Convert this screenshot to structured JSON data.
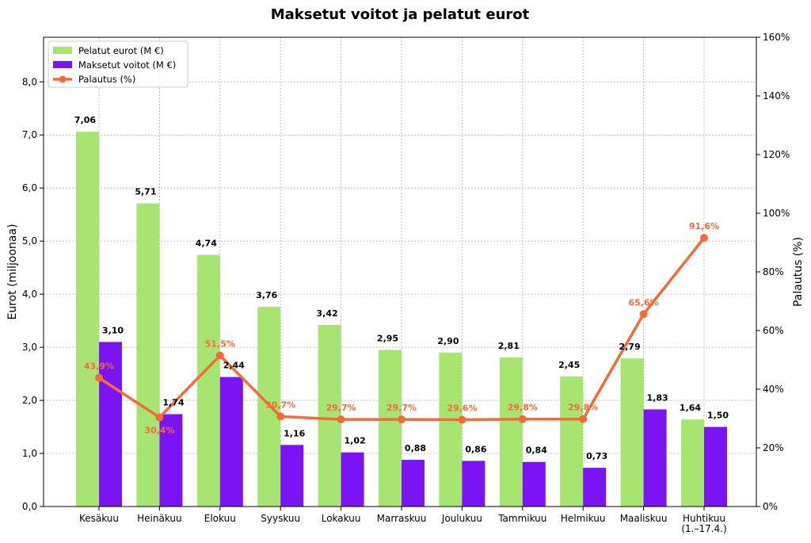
{
  "chart_data": {
    "type": "bar",
    "title": "Maksetut voitot ja pelatut eurot",
    "ylabel": "Eurot (miljoonaa)",
    "y2label": "Palautus (%)",
    "xlabel": "",
    "ylim": [
      0,
      8.84
    ],
    "y2lim": [
      0,
      160
    ],
    "yticks": [
      "0,0",
      "1,0",
      "2,0",
      "3,0",
      "4,0",
      "5,0",
      "6,0",
      "7,0",
      "8,0"
    ],
    "y2ticks": [
      "0%",
      "20%",
      "40%",
      "60%",
      "80%",
      "100%",
      "120%",
      "140%",
      "160%"
    ],
    "grid": true,
    "legend_position": "top-left",
    "categories": [
      "Kesäkuu",
      "Heinäkuu",
      "Elokuu",
      "Syyskuu",
      "Lokakuu",
      "Marraskuu",
      "Joulukuu",
      "Tammikuu",
      "Helmikuu",
      "Maaliskuu",
      "Huhtikuu\n(1.–17.4.)"
    ],
    "series": [
      {
        "name": "Pelatut eurot (M €)",
        "type": "bar",
        "axis": "left",
        "color": "#a8e472",
        "values": [
          7.06,
          5.71,
          4.74,
          3.76,
          3.42,
          2.95,
          2.9,
          2.81,
          2.45,
          2.79,
          1.64
        ],
        "labels": [
          "7,06",
          "5,71",
          "4,74",
          "3,76",
          "3,42",
          "2,95",
          "2,90",
          "2,81",
          "2,45",
          "2,79",
          "1,64"
        ]
      },
      {
        "name": "Maksetut voitot (M €)",
        "type": "bar",
        "axis": "left",
        "color": "#7a14f5",
        "values": [
          3.1,
          1.74,
          2.44,
          1.16,
          1.02,
          0.88,
          0.86,
          0.84,
          0.73,
          1.83,
          1.5
        ],
        "labels": [
          "3,10",
          "1,74",
          "2,44",
          "1,16",
          "1,02",
          "0,88",
          "0,86",
          "0,84",
          "0,73",
          "1,83",
          "1,50"
        ]
      },
      {
        "name": "Palautus (%)",
        "type": "line",
        "axis": "right",
        "color": "#f26b38",
        "values": [
          43.9,
          30.4,
          51.5,
          30.7,
          29.7,
          29.7,
          29.6,
          29.8,
          29.8,
          65.6,
          91.6
        ],
        "labels": [
          "43,9%",
          "30,4%",
          "51,5%",
          "30,7%",
          "29,7%",
          "29,7%",
          "29,6%",
          "29,8%",
          "29,8%",
          "65,6%",
          "91,6%"
        ]
      }
    ]
  }
}
